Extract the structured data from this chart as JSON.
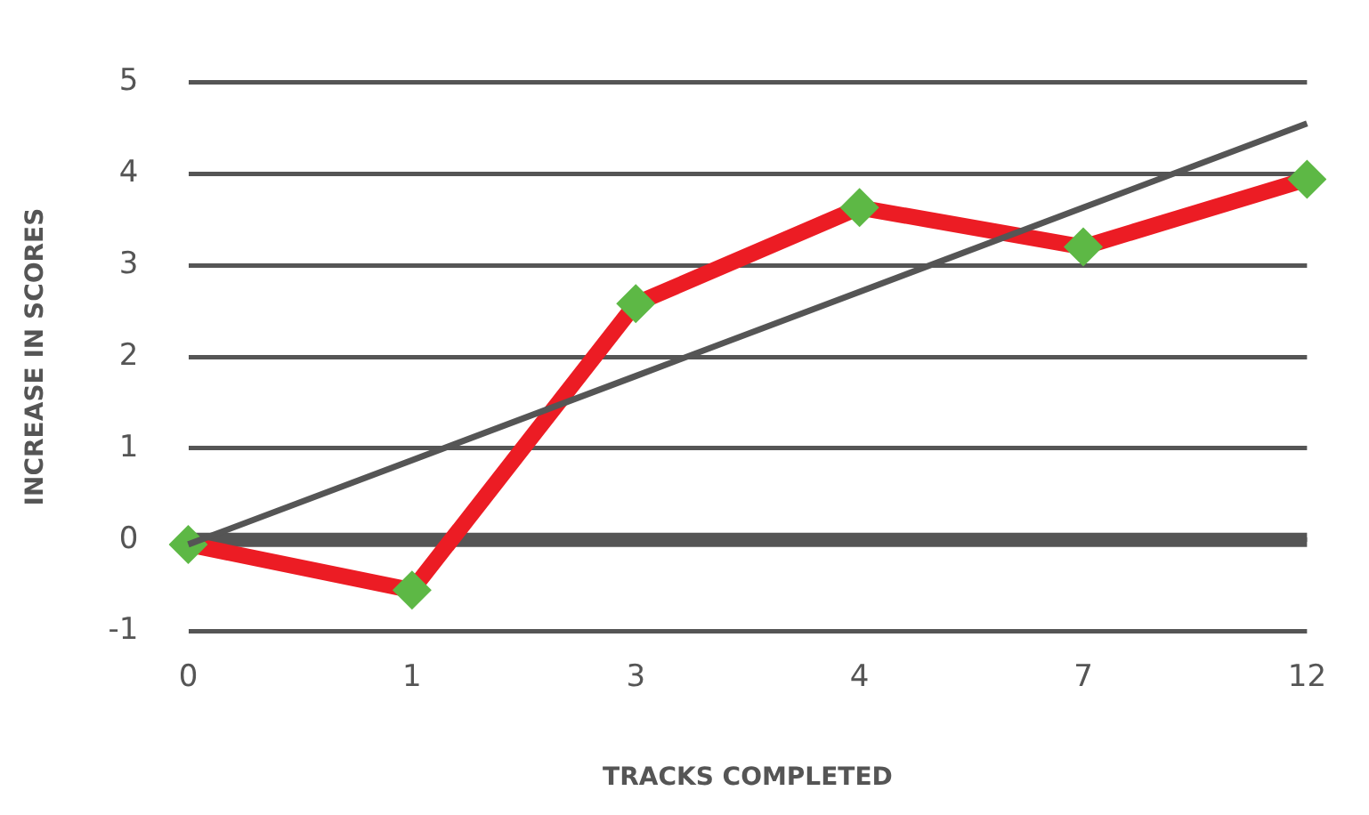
{
  "chart_data": {
    "type": "line",
    "xlabel": "TRACKS COMPLETED",
    "ylabel": "INCREASE IN SCORES",
    "categories": [
      "0",
      "1",
      "3",
      "4",
      "7",
      "12"
    ],
    "series": [
      {
        "color": "#ec1c24",
        "values": [
          -0.05,
          -0.55,
          2.58,
          3.63,
          3.2,
          3.94
        ],
        "marker": "diamond"
      },
      {
        "type": "line",
        "color": "#555555",
        "values": [
          -0.05,
          0.87,
          1.79,
          2.71,
          3.63,
          4.55
        ],
        "marker": "none"
      }
    ],
    "ylim": [
      -1,
      5
    ],
    "yticks": [
      -1,
      0,
      1,
      2,
      3,
      4,
      5
    ],
    "grid": "y",
    "legend": false,
    "ref_lines": [
      {
        "axis": "y",
        "value": 0,
        "color": "#555555"
      }
    ]
  }
}
